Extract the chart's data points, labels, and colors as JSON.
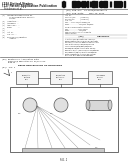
{
  "bg_color": "#ffffff",
  "barcode_color": "#111111",
  "dark_gray": "#2a2a2a",
  "medium_gray": "#666666",
  "light_gray": "#999999",
  "line_color": "#555555",
  "box_fill": "#f5f5f5",
  "diagram_fill": "#eeeeee"
}
